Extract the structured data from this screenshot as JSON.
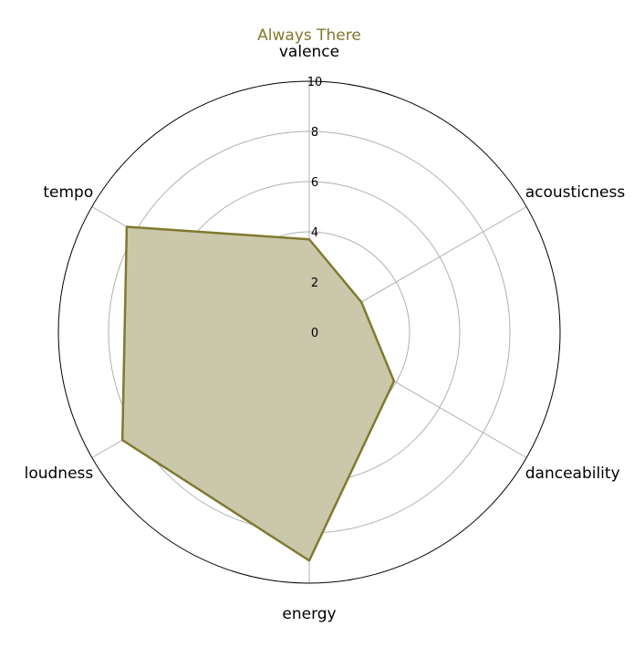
{
  "chart_data": {
    "type": "radar",
    "title": "Always There",
    "title_color": "#7f7a2e",
    "axes": [
      "valence",
      "acousticness",
      "danceability",
      "energy",
      "loudness",
      "tempo"
    ],
    "series": [
      {
        "values": [
          3.7,
          2.4,
          3.9,
          9.1,
          8.6,
          8.4
        ],
        "line_color": "#7f7a2e",
        "fill_color": "#cbc7ab"
      }
    ],
    "r_ticks": [
      0,
      2,
      4,
      6,
      8,
      10
    ],
    "r_tick_labels": [
      "0",
      "2",
      "4",
      "6",
      "8",
      "10"
    ],
    "rlim": [
      0,
      10
    ],
    "grid": true
  }
}
